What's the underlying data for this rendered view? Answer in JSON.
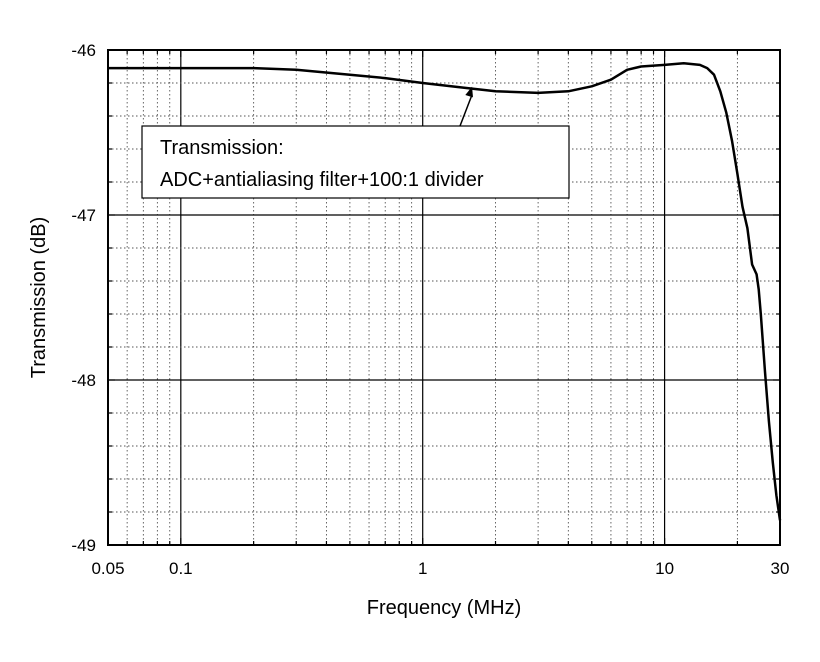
{
  "chart_data": {
    "type": "line",
    "xlabel": "Frequency (MHz)",
    "ylabel": "Transmission (dB)",
    "x_scale": "log",
    "xlim": [
      0.05,
      30
    ],
    "ylim": [
      -49,
      -46
    ],
    "grid": true,
    "x_ticks": [
      {
        "value": 0.05,
        "label": "0.05"
      },
      {
        "value": 0.1,
        "label": "0.1"
      },
      {
        "value": 1,
        "label": "1"
      },
      {
        "value": 10,
        "label": "10"
      },
      {
        "value": 30,
        "label": "30"
      }
    ],
    "y_ticks": [
      {
        "value": -46,
        "label": "-46"
      },
      {
        "value": -47,
        "label": "-47"
      },
      {
        "value": -48,
        "label": "-48"
      },
      {
        "value": -49,
        "label": "-49"
      }
    ],
    "annotation": {
      "lines": [
        "Transmission:",
        "ADC+antialiasing filter+100:1 divider"
      ],
      "arrow_target": {
        "x": 1.6,
        "y": -46.21
      }
    },
    "series": [
      {
        "x": [
          0.05,
          0.1,
          0.2,
          0.3,
          0.5,
          0.7,
          1,
          1.5,
          2,
          3,
          4,
          5,
          6,
          7,
          8,
          10,
          12,
          14,
          15,
          16,
          17,
          18,
          19,
          20,
          21,
          22,
          23,
          24,
          24.5,
          25,
          26,
          27,
          28,
          29,
          30
        ],
        "y": [
          -46.11,
          -46.11,
          -46.11,
          -46.12,
          -46.15,
          -46.17,
          -46.2,
          -46.23,
          -46.25,
          -46.26,
          -46.25,
          -46.22,
          -46.18,
          -46.12,
          -46.1,
          -46.09,
          -46.08,
          -46.09,
          -46.11,
          -46.15,
          -46.25,
          -46.38,
          -46.55,
          -46.75,
          -46.95,
          -47.08,
          -47.3,
          -47.36,
          -47.45,
          -47.6,
          -47.95,
          -48.25,
          -48.5,
          -48.7,
          -48.85
        ]
      }
    ]
  }
}
